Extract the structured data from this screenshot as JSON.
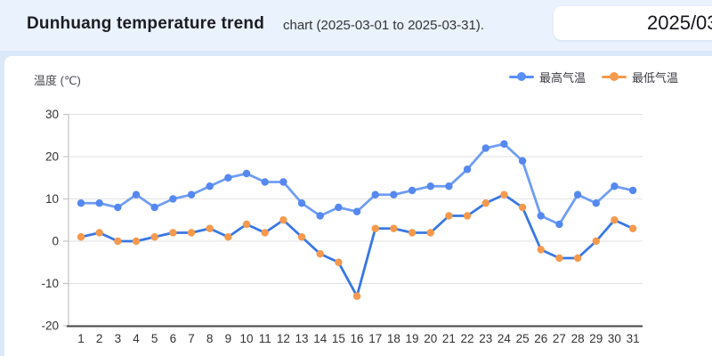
{
  "header": {
    "title": "Dunhuang temperature trend",
    "subtitle": "chart (2025-03-01 to 2025-03-31).",
    "date_input_value": "2025/03"
  },
  "chart": {
    "y_axis_title": "温度 (℃)",
    "legend": [
      {
        "label": "最高气温",
        "color": "#5b8ff9"
      },
      {
        "label": "最低气温",
        "color": "#f5994d"
      }
    ]
  },
  "chart_data": {
    "type": "line",
    "title": "Dunhuang temperature trend (2025-03-01 to 2025-03-31)",
    "x": [
      1,
      2,
      3,
      4,
      5,
      6,
      7,
      8,
      9,
      10,
      11,
      12,
      13,
      14,
      15,
      16,
      17,
      18,
      19,
      20,
      21,
      22,
      23,
      24,
      25,
      26,
      27,
      28,
      29,
      30,
      31
    ],
    "series": [
      {
        "name": "最高气温",
        "line_color": "#6f9df3",
        "marker_color": "#5588f0",
        "values": [
          9,
          9,
          8,
          11,
          8,
          10,
          11,
          13,
          15,
          16,
          14,
          14,
          9,
          6,
          8,
          7,
          11,
          11,
          12,
          13,
          13,
          17,
          22,
          23,
          19,
          6,
          4,
          11,
          9,
          13,
          12
        ]
      },
      {
        "name": "最低气温",
        "line_color": "#3877e3",
        "marker_color": "#f5994d",
        "values": [
          1,
          2,
          0,
          0,
          1,
          2,
          2,
          3,
          1,
          4,
          2,
          5,
          1,
          -3,
          -5,
          -13,
          3,
          3,
          2,
          2,
          6,
          6,
          9,
          11,
          8,
          -2,
          -4,
          -4,
          0,
          5,
          3
        ]
      }
    ],
    "xlabel": "",
    "ylabel": "温度 (℃)",
    "ylim": [
      -20,
      30
    ],
    "yticks": [
      30,
      20,
      10,
      0,
      -10,
      -20
    ],
    "grid": true,
    "legend_position": "top-right",
    "colors": {
      "gridline": "#e2e2e2",
      "y_axis_line": "#c4c4c4",
      "x_axis_line": "#444444",
      "tick_label": "#333333"
    }
  }
}
